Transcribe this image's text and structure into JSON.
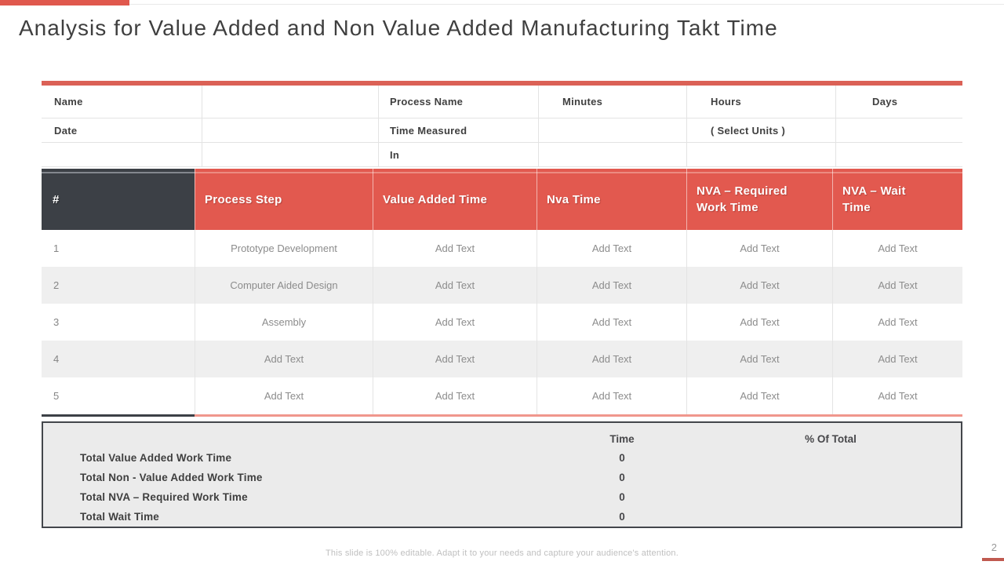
{
  "colors": {
    "accent_red": "#E2594F",
    "accent_red_light": "#EC8B81",
    "dark_header": "#3C4046",
    "dark_header_light": "#83878E",
    "alt_row": "#EFEFEF",
    "summary_bg": "#EBEBEB",
    "text_dark": "#404040",
    "text_gray": "#8C8C8C"
  },
  "title": "Analysis for Value Added and Non Value Added Manufacturing Takt Time",
  "info_table": {
    "rows": [
      [
        "Name",
        "",
        "Process Name",
        "Minutes",
        "Hours",
        "Days"
      ],
      [
        "Date",
        "",
        "Time Measured",
        "",
        "( Select Units )",
        ""
      ],
      [
        "",
        "",
        "In",
        "",
        "",
        ""
      ]
    ]
  },
  "main_table": {
    "headers": [
      "#",
      "Process Step",
      "Value Added Time",
      "Nva Time",
      "NVA – Required Work Time",
      "NVA – Wait Time"
    ],
    "rows": [
      [
        "1",
        "Prototype Development",
        "Add Text",
        "Add Text",
        "Add Text",
        "Add Text"
      ],
      [
        "2",
        "Computer Aided Design",
        "Add Text",
        "Add Text",
        "Add Text",
        "Add Text"
      ],
      [
        "3",
        "Assembly",
        "Add Text",
        "Add Text",
        "Add Text",
        "Add Text"
      ],
      [
        "4",
        "Add Text",
        "Add Text",
        "Add Text",
        "Add Text",
        "Add Text"
      ],
      [
        "5",
        "Add Text",
        "Add Text",
        "Add Text",
        "Add Text",
        "Add Text"
      ]
    ]
  },
  "summary": {
    "col_time": "Time",
    "col_pct": "% Of Total",
    "rows": [
      {
        "label": "Total Value Added Work Time",
        "time": "0",
        "pct": ""
      },
      {
        "label": "Total Non - Value Added Work Time",
        "time": "0",
        "pct": ""
      },
      {
        "label": "Total NVA – Required Work Time",
        "time": "0",
        "pct": ""
      },
      {
        "label": "Total Wait Time",
        "time": "0",
        "pct": ""
      }
    ]
  },
  "footer": {
    "note": "This slide is 100% editable. Adapt it to your needs and capture your audience's attention.",
    "page_number": "2"
  }
}
